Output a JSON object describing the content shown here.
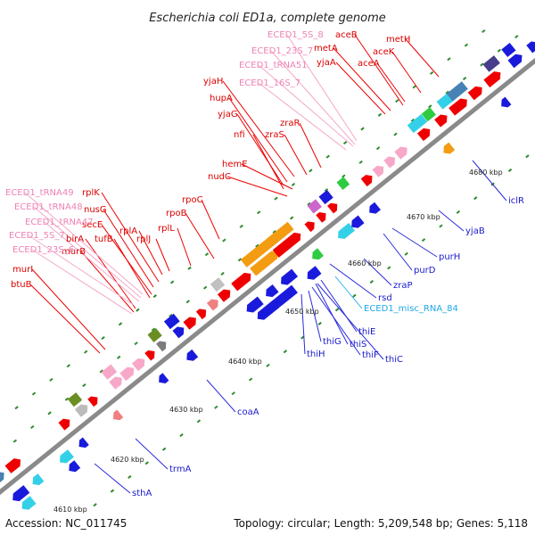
{
  "title": "Escherichia coli ED1a, complete genome",
  "footer": {
    "accession": "Accession: NC_011745",
    "stats": "Topology: circular; Length: 5,209,548 bp; Genes: 5,118"
  },
  "colors": {
    "backbone": "#8a8a8a",
    "tick": "#2e8b2e",
    "forward_gene": "#ee0000",
    "reverse_gene": "#1a1adc",
    "rRNA": "#f7a8c8",
    "tRNA": "#f7a8c8",
    "misc_RNA": "#29b6f6",
    "operon_orange": "#f39c12",
    "operon_cyan": "#34d0e8",
    "operon_steel": "#4682b4"
  },
  "scale_labels": [
    "4610 kbp",
    "4620 kbp",
    "4630 kbp",
    "4640 kbp",
    "4650 kbp",
    "4660 kbp",
    "4670 kbp",
    "4680 kbp"
  ],
  "labels": [
    {
      "text": "ECED1_5S_8",
      "kind": "rna"
    },
    {
      "text": "ECED1_23S_7",
      "kind": "rna"
    },
    {
      "text": "ECED1_tRNA51",
      "kind": "rna"
    },
    {
      "text": "ECED1_16S_7",
      "kind": "rna"
    },
    {
      "text": "aceB",
      "kind": "fwd"
    },
    {
      "text": "metA",
      "kind": "fwd"
    },
    {
      "text": "yjaA",
      "kind": "fwd"
    },
    {
      "text": "aceA",
      "kind": "fwd"
    },
    {
      "text": "aceK",
      "kind": "fwd"
    },
    {
      "text": "metH",
      "kind": "fwd"
    },
    {
      "text": "yjaH",
      "kind": "fwd"
    },
    {
      "text": "hupA",
      "kind": "fwd"
    },
    {
      "text": "yjaG",
      "kind": "fwd"
    },
    {
      "text": "nfi",
      "kind": "fwd"
    },
    {
      "text": "zraR",
      "kind": "fwd"
    },
    {
      "text": "zraS",
      "kind": "fwd"
    },
    {
      "text": "hemE",
      "kind": "fwd"
    },
    {
      "text": "nudC",
      "kind": "fwd"
    },
    {
      "text": "rpoC",
      "kind": "fwd"
    },
    {
      "text": "rpoB",
      "kind": "fwd"
    },
    {
      "text": "rplL",
      "kind": "fwd"
    },
    {
      "text": "rplJ",
      "kind": "fwd"
    },
    {
      "text": "rplA",
      "kind": "fwd"
    },
    {
      "text": "rplK",
      "kind": "fwd"
    },
    {
      "text": "nusG",
      "kind": "fwd"
    },
    {
      "text": "secE",
      "kind": "fwd"
    },
    {
      "text": "tufB",
      "kind": "fwd"
    },
    {
      "text": "birA",
      "kind": "fwd"
    },
    {
      "text": "murB",
      "kind": "fwd"
    },
    {
      "text": "murI",
      "kind": "fwd"
    },
    {
      "text": "btuB",
      "kind": "fwd"
    },
    {
      "text": "ECED1_tRNA49",
      "kind": "rna"
    },
    {
      "text": "ECED1_tRNA48",
      "kind": "rna"
    },
    {
      "text": "ECED1_tRNA47",
      "kind": "rna"
    },
    {
      "text": "ECED1_5S_7",
      "kind": "rna"
    },
    {
      "text": "ECED1_23S_6",
      "kind": "rna"
    },
    {
      "text": "iclR",
      "kind": "rev"
    },
    {
      "text": "yjaB",
      "kind": "rev"
    },
    {
      "text": "purH",
      "kind": "rev"
    },
    {
      "text": "purD",
      "kind": "rev"
    },
    {
      "text": "zraP",
      "kind": "rev"
    },
    {
      "text": "rsd",
      "kind": "rev"
    },
    {
      "text": "ECED1_misc_RNA_84",
      "kind": "misc"
    },
    {
      "text": "thiE",
      "kind": "rev"
    },
    {
      "text": "thiS",
      "kind": "rev"
    },
    {
      "text": "thiF",
      "kind": "rev"
    },
    {
      "text": "thiC",
      "kind": "rev"
    },
    {
      "text": "thiG",
      "kind": "rev"
    },
    {
      "text": "thiH",
      "kind": "rev"
    },
    {
      "text": "coaA",
      "kind": "rev"
    },
    {
      "text": "trmA",
      "kind": "rev"
    },
    {
      "text": "sthA",
      "kind": "rev"
    }
  ]
}
